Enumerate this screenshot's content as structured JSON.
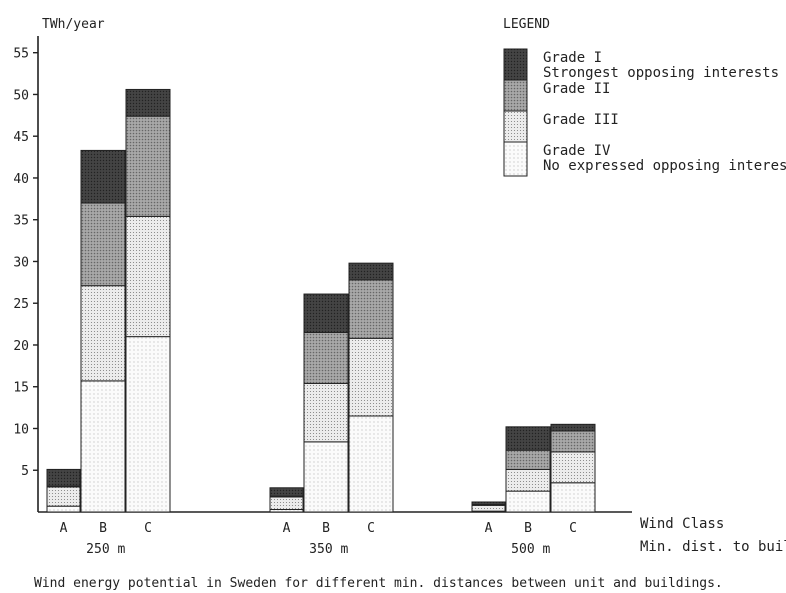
{
  "chart_data": {
    "type": "bar",
    "stacked": true,
    "ylabel": "TWh/year",
    "ylim": [
      0,
      57
    ],
    "yticks": [
      5,
      10,
      15,
      20,
      25,
      30,
      35,
      40,
      45,
      50,
      55
    ],
    "grid": false,
    "x_axis_labels": [
      "Wind Class",
      "Min. dist. to buildings"
    ],
    "groups": [
      {
        "label": "250  m",
        "bars": [
          {
            "category": "A",
            "values": [
              0.7,
              2.3,
              0.1,
              2.0
            ]
          },
          {
            "category": "B",
            "values": [
              15.7,
              11.4,
              9.9,
              6.3
            ]
          },
          {
            "category": "C",
            "values": [
              21.0,
              14.4,
              12.0,
              3.2
            ]
          }
        ]
      },
      {
        "label": "350  m",
        "bars": [
          {
            "category": "A",
            "values": [
              0.3,
              1.5,
              0.1,
              1.0
            ]
          },
          {
            "category": "B",
            "values": [
              8.4,
              7.0,
              6.1,
              4.6
            ]
          },
          {
            "category": "C",
            "values": [
              11.5,
              9.3,
              7.0,
              2.0
            ]
          }
        ]
      },
      {
        "label": "500  m",
        "bars": [
          {
            "category": "A",
            "values": [
              0.1,
              0.7,
              0.1,
              0.3
            ]
          },
          {
            "category": "B",
            "values": [
              2.5,
              2.6,
              2.3,
              2.8
            ]
          },
          {
            "category": "C",
            "values": [
              3.5,
              3.7,
              2.5,
              0.8
            ]
          }
        ]
      }
    ],
    "series": [
      {
        "name": "Grade IV",
        "sublabel": "No expressed opposing interests",
        "color": "#f8f8f8"
      },
      {
        "name": "Grade III",
        "sublabel": "",
        "color": "#e3e3e3"
      },
      {
        "name": "Grade II",
        "sublabel": "",
        "color": "#9c9c9c"
      },
      {
        "name": "Grade I",
        "sublabel": "Strongest opposing interests",
        "color": "#3c3c3c"
      }
    ],
    "legend": {
      "title": "LEGEND",
      "position": "top-right",
      "order": [
        3,
        2,
        1,
        0
      ]
    },
    "caption": "Wind energy potential in Sweden for different min. distances between unit and buildings."
  }
}
